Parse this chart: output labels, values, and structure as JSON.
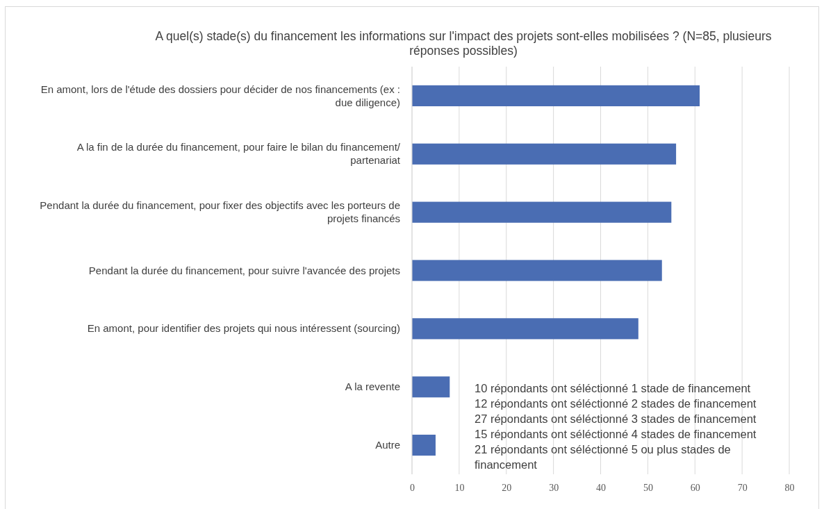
{
  "chart_data": {
    "type": "bar",
    "orientation": "horizontal",
    "title": "A quel(s) stade(s) du financement les informations sur l'impact des projets sont-elles mobilisées ? (N=85, plusieurs réponses possibles)",
    "categories": [
      "En amont, lors de l'étude des dossiers pour décider de nos financements (ex : due diligence)",
      "A la fin de la durée du financement, pour faire le bilan du financement/ partenariat",
      "Pendant la durée du financement, pour fixer des objectifs avec les porteurs de projets financés",
      "Pendant la durée du financement, pour suivre l'avancée des projets",
      "En amont, pour identifier des projets qui nous intéressent (sourcing)",
      "A la revente",
      "Autre"
    ],
    "values": [
      61,
      56,
      55,
      53,
      48,
      8,
      5
    ],
    "color": "#4a6db3",
    "xlim": [
      0,
      80
    ],
    "xticks": [
      0,
      10,
      20,
      30,
      40,
      50,
      60,
      70,
      80
    ],
    "grid": "x",
    "annotations": [
      "10 répondants ont séléctionné 1 stade de financement",
      "12 répondants ont séléctionné 2 stades de financement",
      "27 répondants ont séléctionné 3 stades de financement",
      "15 répondants ont séléctionné 4 stades de financement",
      "21 répondants ont séléctionné 5 ou plus stades de financement"
    ]
  }
}
